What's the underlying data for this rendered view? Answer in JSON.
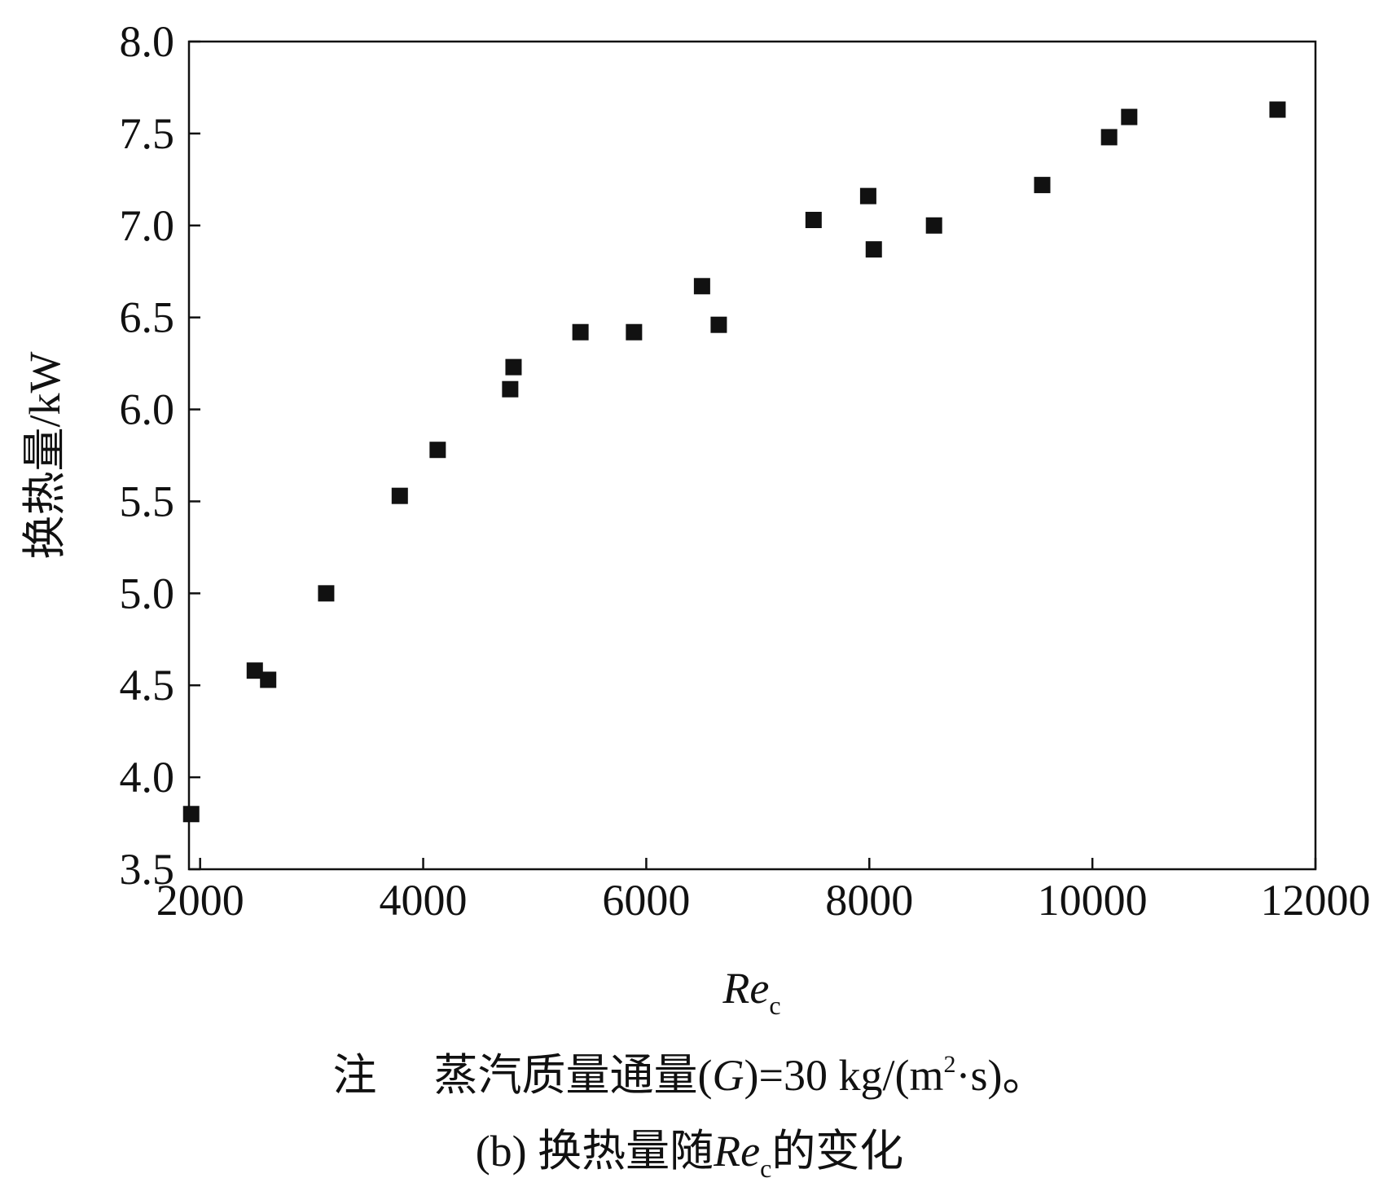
{
  "chart_data": {
    "type": "scatter",
    "title": "",
    "xlabel": {
      "main": "Re",
      "sub": "c"
    },
    "ylabel": "换热量/kW",
    "xlim": [
      1900,
      12000
    ],
    "ylim": [
      3.5,
      8.0
    ],
    "xticks": [
      "2000",
      "4000",
      "6000",
      "8000",
      "10000",
      "12000"
    ],
    "xtick_values": [
      2000,
      4000,
      6000,
      8000,
      10000,
      12000
    ],
    "yticks": [
      "3.5",
      "4.0",
      "4.5",
      "5.0",
      "5.5",
      "6.0",
      "6.5",
      "7.0",
      "7.5",
      "8.0"
    ],
    "ytick_values": [
      3.5,
      4.0,
      4.5,
      5.0,
      5.5,
      6.0,
      6.5,
      7.0,
      7.5,
      8.0
    ],
    "grid": false,
    "marker_color": "#111111",
    "series": [
      {
        "x": [
          1920,
          2490,
          2610,
          3130,
          3790,
          4130,
          4780,
          4810,
          5410,
          5890,
          6500,
          6650,
          7500,
          7990,
          8040,
          8580,
          9550,
          10150,
          10330,
          11660
        ],
        "y": [
          3.8,
          4.58,
          4.53,
          5.0,
          5.53,
          5.78,
          6.11,
          6.23,
          6.42,
          6.42,
          6.67,
          6.46,
          7.03,
          7.16,
          6.87,
          7.0,
          7.22,
          7.48,
          7.59,
          7.63
        ]
      }
    ]
  },
  "caption": {
    "note_prefix": "注",
    "note_pre": "蒸汽质量通量(",
    "note_var": "G",
    "note_mid": ")=30 kg/(m",
    "note_sup": "2",
    "note_post": "·s)。",
    "sub_pre": "(b) 换热量随",
    "sub_var": "Re",
    "sub_sub": "c",
    "sub_post": "的变化"
  }
}
